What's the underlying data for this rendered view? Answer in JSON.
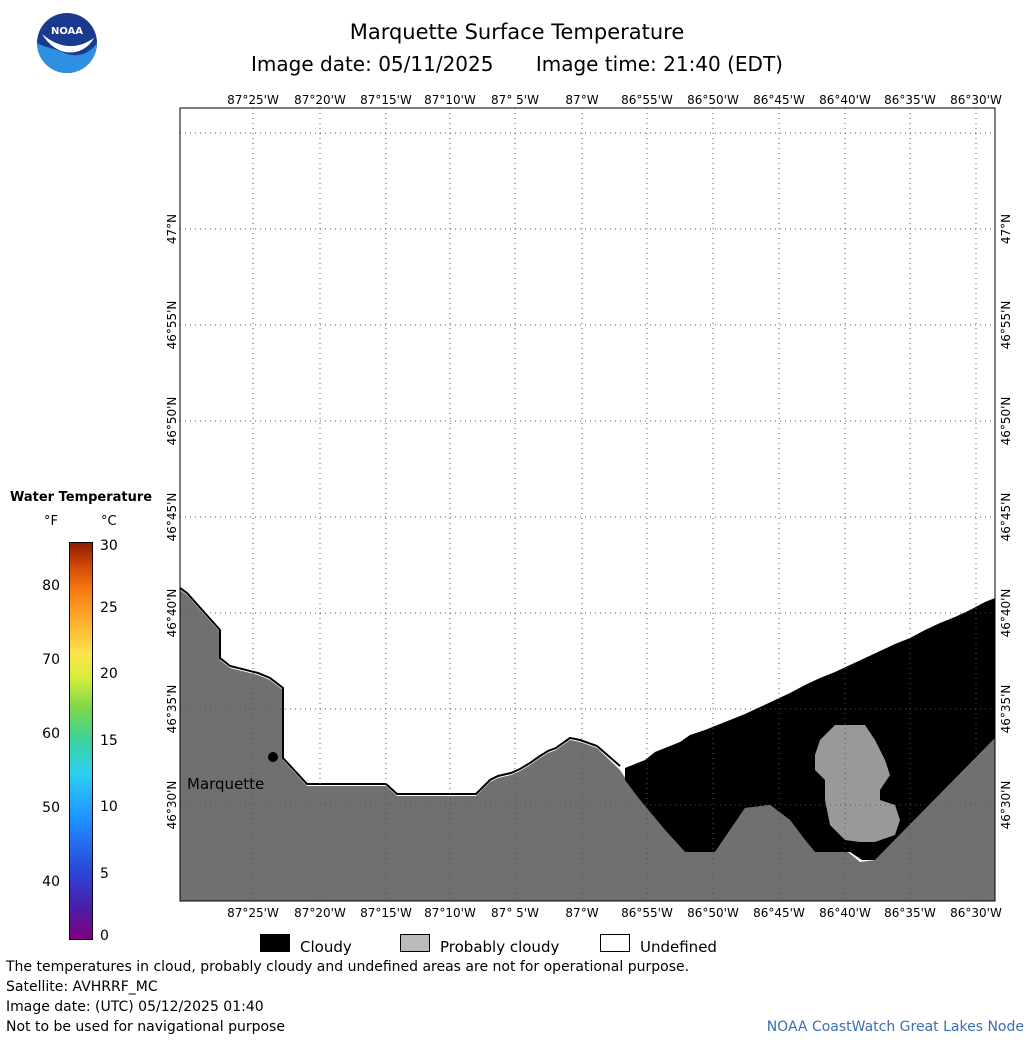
{
  "title": "Marquette Surface Temperature",
  "image_date_label": "Image date: 05/11/2025",
  "image_time_label": "Image time: 21:40 (EDT)",
  "logo_text": "NOAA",
  "longitude_labels": [
    "87°25'W",
    "87°20'W",
    "87°15'W",
    "87°10'W",
    "87° 5'W",
    "87°W",
    "86°55'W",
    "86°50'W",
    "86°45'W",
    "86°40'W",
    "86°35'W",
    "86°30'W"
  ],
  "latitude_labels": [
    "47°N",
    "46°55'N",
    "46°50'N",
    "46°45'N",
    "46°40'N",
    "46°35'N",
    "46°30'N"
  ],
  "city_label": "Marquette",
  "legend": {
    "title": "Water Temperature",
    "unit_f": "°F",
    "unit_c": "°C",
    "f_ticks": [
      "80",
      "70",
      "60",
      "50",
      "40"
    ],
    "c_ticks": [
      "30",
      "25",
      "20",
      "15",
      "10",
      "5",
      "0"
    ]
  },
  "categories": [
    {
      "label": "Cloudy",
      "color": "#000000"
    },
    {
      "label": "Probably cloudy",
      "color": "#bbbbbb"
    },
    {
      "label": "Undefined",
      "color": "#ffffff"
    }
  ],
  "footer": {
    "line1": "The temperatures in cloud, probably cloudy and undefined areas are not for operational purpose.",
    "line2": "Satellite: AVHRRF_MC",
    "line3": "Image date: (UTC) 05/12/2025  01:40",
    "line4": "Not to be used for navigational purpose",
    "credit": "NOAA CoastWatch Great Lakes Node"
  },
  "colors": {
    "land": "#707070",
    "cloudy": "#000000",
    "probably_cloudy": "#999999",
    "water": "#ffffff"
  }
}
